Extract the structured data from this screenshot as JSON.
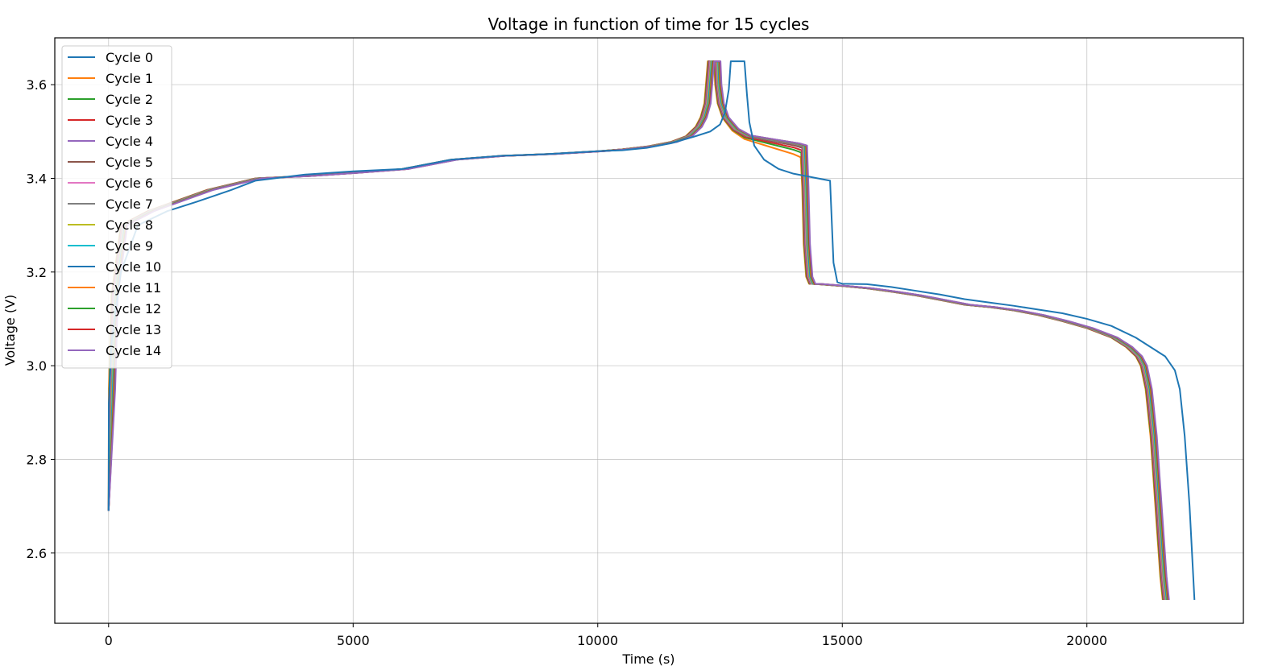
{
  "chart_data": {
    "type": "line",
    "title": "Voltage in function of time for 15 cycles",
    "xlabel": "Time (s)",
    "ylabel": "Voltage (V)",
    "xlim": [
      -1100,
      23200
    ],
    "ylim": [
      2.45,
      3.7
    ],
    "xticks": [
      0,
      5000,
      10000,
      15000,
      20000
    ],
    "xtick_labels": [
      "0",
      "5000",
      "10000",
      "15000",
      "20000"
    ],
    "yticks": [
      2.6,
      2.8,
      3.0,
      3.2,
      3.4,
      3.6
    ],
    "ytick_labels": [
      "2.6",
      "2.8",
      "3.0",
      "3.2",
      "3.4",
      "3.6"
    ],
    "grid": true,
    "legend_position": "upper-left",
    "reference_points": [
      [
        0,
        2.69
      ],
      [
        5,
        2.95
      ],
      [
        60,
        3.15
      ],
      [
        250,
        3.3
      ],
      [
        800,
        3.33
      ],
      [
        1200,
        3.345
      ],
      [
        2000,
        3.375
      ],
      [
        3000,
        3.4
      ],
      [
        4000,
        3.405
      ],
      [
        5000,
        3.412
      ],
      [
        6000,
        3.42
      ],
      [
        7000,
        3.44
      ],
      [
        8000,
        3.448
      ],
      [
        9000,
        3.452
      ],
      [
        10000,
        3.458
      ],
      [
        10500,
        3.462
      ],
      [
        11000,
        3.468
      ],
      [
        11500,
        3.478
      ],
      [
        11800,
        3.49
      ],
      [
        12000,
        3.51
      ],
      [
        12100,
        3.53
      ],
      [
        12180,
        3.56
      ],
      [
        12250,
        3.65
      ],
      [
        12380,
        3.65
      ],
      [
        12400,
        3.6
      ],
      [
        12450,
        3.56
      ],
      [
        12550,
        3.53
      ],
      [
        12750,
        3.505
      ],
      [
        13000,
        3.49
      ],
      [
        13500,
        3.48
      ],
      [
        14000,
        3.47
      ],
      [
        14150,
        3.465
      ],
      [
        14180,
        3.38
      ],
      [
        14210,
        3.26
      ],
      [
        14260,
        3.19
      ],
      [
        14320,
        3.175
      ],
      [
        14500,
        3.174
      ],
      [
        15000,
        3.17
      ],
      [
        15500,
        3.165
      ],
      [
        16000,
        3.158
      ],
      [
        16500,
        3.15
      ],
      [
        17000,
        3.14
      ],
      [
        17500,
        3.13
      ],
      [
        18000,
        3.125
      ],
      [
        18500,
        3.118
      ],
      [
        19000,
        3.108
      ],
      [
        19500,
        3.095
      ],
      [
        20000,
        3.08
      ],
      [
        20500,
        3.06
      ],
      [
        20800,
        3.04
      ],
      [
        21000,
        3.02
      ],
      [
        21100,
        3.0
      ],
      [
        21200,
        2.95
      ],
      [
        21300,
        2.85
      ],
      [
        21400,
        2.7
      ],
      [
        21500,
        2.55
      ],
      [
        21550,
        2.5
      ]
    ],
    "series": [
      {
        "name": "Cycle 0",
        "color": "#1f77b4",
        "points": [
          [
            0,
            2.69
          ],
          [
            5,
            2.92
          ],
          [
            60,
            3.05
          ],
          [
            250,
            3.2
          ],
          [
            600,
            3.3
          ],
          [
            1200,
            3.33
          ],
          [
            1800,
            3.35
          ],
          [
            2500,
            3.375
          ],
          [
            3000,
            3.395
          ],
          [
            4000,
            3.408
          ],
          [
            5000,
            3.415
          ],
          [
            6000,
            3.42
          ],
          [
            7000,
            3.44
          ],
          [
            8000,
            3.448
          ],
          [
            9000,
            3.452
          ],
          [
            10000,
            3.458
          ],
          [
            10500,
            3.46
          ],
          [
            11000,
            3.465
          ],
          [
            11500,
            3.475
          ],
          [
            12000,
            3.49
          ],
          [
            12300,
            3.5
          ],
          [
            12500,
            3.515
          ],
          [
            12600,
            3.54
          ],
          [
            12680,
            3.59
          ],
          [
            12720,
            3.65
          ],
          [
            13000,
            3.65
          ],
          [
            13050,
            3.58
          ],
          [
            13100,
            3.52
          ],
          [
            13200,
            3.47
          ],
          [
            13400,
            3.44
          ],
          [
            13700,
            3.42
          ],
          [
            14000,
            3.41
          ],
          [
            14500,
            3.4
          ],
          [
            14750,
            3.395
          ],
          [
            14780,
            3.32
          ],
          [
            14820,
            3.22
          ],
          [
            14900,
            3.178
          ],
          [
            15000,
            3.175
          ],
          [
            15500,
            3.174
          ],
          [
            16000,
            3.168
          ],
          [
            16500,
            3.16
          ],
          [
            17000,
            3.152
          ],
          [
            17500,
            3.142
          ],
          [
            18000,
            3.135
          ],
          [
            18500,
            3.128
          ],
          [
            19000,
            3.12
          ],
          [
            19500,
            3.112
          ],
          [
            20000,
            3.1
          ],
          [
            20500,
            3.085
          ],
          [
            21000,
            3.06
          ],
          [
            21300,
            3.04
          ],
          [
            21600,
            3.02
          ],
          [
            21800,
            2.99
          ],
          [
            21900,
            2.95
          ],
          [
            22000,
            2.85
          ],
          [
            22100,
            2.7
          ],
          [
            22200,
            2.5
          ]
        ]
      },
      {
        "name": "Cycle 1",
        "color": "#ff7f0e",
        "shift": 0,
        "charge_end_v": 3.445
      },
      {
        "name": "Cycle 2",
        "color": "#2ca02c",
        "shift": 10,
        "charge_end_v": 3.455
      },
      {
        "name": "Cycle 3",
        "color": "#d62728",
        "shift": 20,
        "charge_end_v": 3.46
      },
      {
        "name": "Cycle 4",
        "color": "#9467bd",
        "shift": 30,
        "charge_end_v": 3.465
      },
      {
        "name": "Cycle 5",
        "color": "#8c564b",
        "shift": 40,
        "charge_end_v": 3.465
      },
      {
        "name": "Cycle 6",
        "color": "#e377c2",
        "shift": 50,
        "charge_end_v": 3.468
      },
      {
        "name": "Cycle 7",
        "color": "#7f7f7f",
        "shift": 60,
        "charge_end_v": 3.468
      },
      {
        "name": "Cycle 8",
        "color": "#bcbd22",
        "shift": 70,
        "charge_end_v": 3.47
      },
      {
        "name": "Cycle 9",
        "color": "#17becf",
        "shift": 80,
        "charge_end_v": 3.47
      },
      {
        "name": "Cycle 10",
        "color": "#1f77b4",
        "shift": 90,
        "charge_end_v": 3.47
      },
      {
        "name": "Cycle 11",
        "color": "#ff7f0e",
        "shift": 100,
        "charge_end_v": 3.47
      },
      {
        "name": "Cycle 12",
        "color": "#2ca02c",
        "shift": 110,
        "charge_end_v": 3.47
      },
      {
        "name": "Cycle 13",
        "color": "#d62728",
        "shift": 120,
        "charge_end_v": 3.47
      },
      {
        "name": "Cycle 14",
        "color": "#9467bd",
        "shift": 130,
        "charge_end_v": 3.47
      }
    ]
  }
}
